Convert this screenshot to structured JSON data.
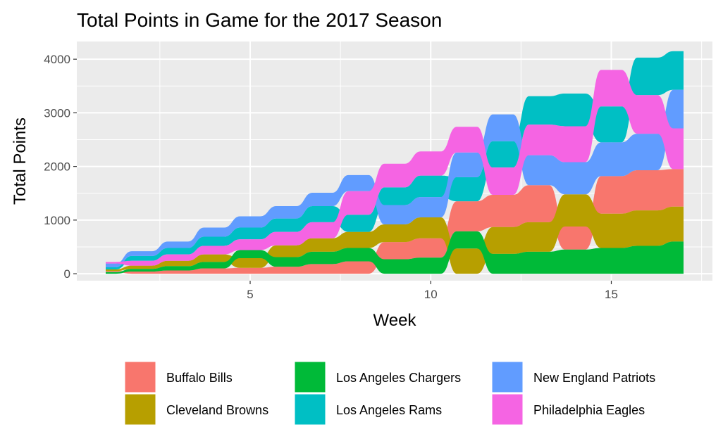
{
  "chart_data": {
    "type": "area",
    "subtype": "stacked-bump-streamgraph",
    "title": "Total Points in Game for the 2017 Season",
    "xlabel": "Week",
    "ylabel": "Total Points",
    "xlim": [
      0.2,
      17.8
    ],
    "ylim": [
      -130,
      4330
    ],
    "xticks": [
      5,
      10,
      15
    ],
    "yticks": [
      0,
      1000,
      2000,
      3000,
      4000
    ],
    "grid": true,
    "legend_position": "bottom",
    "x": [
      1,
      2,
      3,
      4,
      5,
      6,
      7,
      8,
      9,
      10,
      11,
      12,
      13,
      14,
      15,
      16,
      17
    ],
    "stack_order": [
      "Los Angeles Chargers",
      "Buffalo Bills",
      "Cleveland Browns",
      "Los Angeles Rams",
      "New England Patriots",
      "Philadelphia Eagles"
    ],
    "series": [
      {
        "name": "Buffalo Bills",
        "color": "#F8766D",
        "values": [
          20,
          40,
          60,
          100,
          110,
          130,
          180,
          230,
          320,
          360,
          560,
          600,
          690,
          430,
          700,
          750,
          700
        ]
      },
      {
        "name": "Cleveland Browns",
        "color": "#B79F00",
        "values": [
          30,
          60,
          100,
          140,
          180,
          220,
          250,
          300,
          330,
          390,
          470,
          500,
          550,
          600,
          640,
          660,
          650
        ]
      },
      {
        "name": "Los Angeles Chargers",
        "color": "#00BA38",
        "values": [
          30,
          50,
          80,
          120,
          150,
          180,
          230,
          250,
          270,
          300,
          320,
          370,
          410,
          450,
          480,
          520,
          600
        ]
      },
      {
        "name": "Los Angeles Rams",
        "color": "#00BFC4",
        "values": [
          40,
          90,
          120,
          170,
          220,
          250,
          300,
          320,
          330,
          400,
          450,
          490,
          530,
          610,
          670,
          700,
          720
        ]
      },
      {
        "name": "New England Patriots",
        "color": "#619CFF",
        "values": [
          70,
          90,
          120,
          170,
          210,
          230,
          250,
          300,
          360,
          380,
          460,
          500,
          560,
          600,
          630,
          680,
          720
        ]
      },
      {
        "name": "Philadelphia Eagles",
        "color": "#F564E3",
        "values": [
          30,
          90,
          120,
          160,
          200,
          250,
          300,
          440,
          440,
          450,
          480,
          510,
          570,
          670,
          680,
          720,
          760
        ]
      }
    ],
    "layers_by_week": [
      [
        "Los Angeles Chargers",
        "Buffalo Bills",
        "Cleveland Browns",
        "Los Angeles Rams",
        "New England Patriots",
        "Philadelphia Eagles"
      ],
      [
        "Buffalo Bills",
        "Los Angeles Chargers",
        "Cleveland Browns",
        "Philadelphia Eagles",
        "Los Angeles Rams",
        "New England Patriots"
      ],
      [
        "Buffalo Bills",
        "Los Angeles Chargers",
        "Cleveland Browns",
        "Philadelphia Eagles",
        "Los Angeles Rams",
        "New England Patriots"
      ],
      [
        "Buffalo Bills",
        "Los Angeles Chargers",
        "Cleveland Browns",
        "Philadelphia Eagles",
        "Los Angeles Rams",
        "New England Patriots"
      ],
      [
        "Buffalo Bills",
        "Cleveland Browns",
        "Los Angeles Chargers",
        "Philadelphia Eagles",
        "Los Angeles Rams",
        "New England Patriots"
      ],
      [
        "Buffalo Bills",
        "Los Angeles Chargers",
        "Cleveland Browns",
        "Philadelphia Eagles",
        "Los Angeles Rams",
        "New England Patriots"
      ],
      [
        "Buffalo Bills",
        "Los Angeles Chargers",
        "Cleveland Browns",
        "Philadelphia Eagles",
        "Los Angeles Rams",
        "New England Patriots"
      ],
      [
        "Buffalo Bills",
        "Los Angeles Chargers",
        "Cleveland Browns",
        "Los Angeles Rams",
        "Philadelphia Eagles",
        "New England Patriots"
      ],
      [
        "Los Angeles Chargers",
        "Buffalo Bills",
        "Cleveland Browns",
        "New England Patriots",
        "Los Angeles Rams",
        "Philadelphia Eagles"
      ],
      [
        "Los Angeles Chargers",
        "Buffalo Bills",
        "Cleveland Browns",
        "New England Patriots",
        "Los Angeles Rams",
        "Philadelphia Eagles"
      ],
      [
        "Cleveland Browns",
        "Los Angeles Chargers",
        "Buffalo Bills",
        "Los Angeles Rams",
        "New England Patriots",
        "Philadelphia Eagles"
      ],
      [
        "Los Angeles Chargers",
        "Cleveland Browns",
        "Buffalo Bills",
        "Philadelphia Eagles",
        "Los Angeles Rams",
        "New England Patriots"
      ],
      [
        "Los Angeles Chargers",
        "Cleveland Browns",
        "Buffalo Bills",
        "New England Patriots",
        "Philadelphia Eagles",
        "Los Angeles Rams"
      ],
      [
        "Los Angeles Chargers",
        "Buffalo Bills",
        "Cleveland Browns",
        "New England Patriots",
        "Philadelphia Eagles",
        "Los Angeles Rams"
      ],
      [
        "Los Angeles Chargers",
        "Cleveland Browns",
        "Buffalo Bills",
        "New England Patriots",
        "Los Angeles Rams",
        "Philadelphia Eagles"
      ],
      [
        "Los Angeles Chargers",
        "Cleveland Browns",
        "Buffalo Bills",
        "New England Patriots",
        "Philadelphia Eagles",
        "Los Angeles Rams"
      ],
      [
        "Los Angeles Chargers",
        "Cleveland Browns",
        "Buffalo Bills",
        "Philadelphia Eagles",
        "New England Patriots",
        "Los Angeles Rams"
      ]
    ],
    "legend": [
      {
        "label": "Buffalo Bills",
        "color": "#F8766D"
      },
      {
        "label": "Cleveland Browns",
        "color": "#B79F00"
      },
      {
        "label": "Los Angeles Chargers",
        "color": "#00BA38"
      },
      {
        "label": "Los Angeles Rams",
        "color": "#00BFC4"
      },
      {
        "label": "New England Patriots",
        "color": "#619CFF"
      },
      {
        "label": "Philadelphia Eagles",
        "color": "#F564E3"
      }
    ]
  }
}
